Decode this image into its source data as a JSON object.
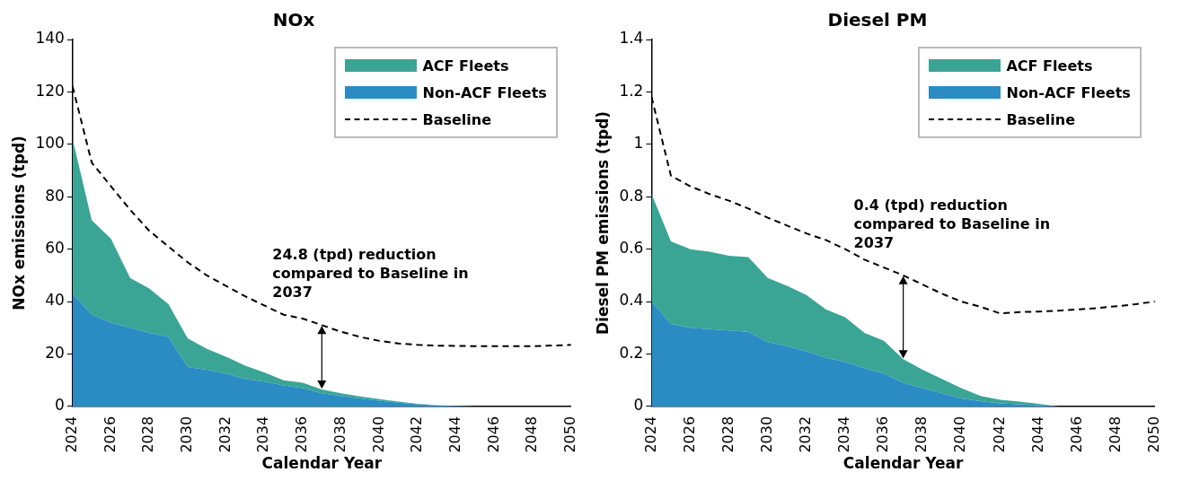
{
  "chart_data": [
    {
      "type": "area",
      "title": "NOx",
      "xlabel": "Calendar Year",
      "ylabel": "NOx emissions (tpd)",
      "stacked": true,
      "legend": "top right",
      "x": [
        2024,
        2025,
        2026,
        2027,
        2028,
        2029,
        2030,
        2031,
        2032,
        2033,
        2034,
        2035,
        2036,
        2037,
        2038,
        2039,
        2040,
        2041,
        2042,
        2043,
        2044,
        2045,
        2046,
        2047,
        2048,
        2049,
        2050
      ],
      "xlim": [
        2024,
        2050
      ],
      "xticks": [
        2024,
        2026,
        2028,
        2030,
        2032,
        2034,
        2036,
        2038,
        2040,
        2042,
        2044,
        2046,
        2048,
        2050
      ],
      "ylim": [
        0,
        140
      ],
      "yticks": [
        0,
        20,
        40,
        60,
        80,
        100,
        120,
        140
      ],
      "series": [
        {
          "name": "Non-ACF Fleets",
          "color": "#2b8cc4",
          "values": [
            43,
            35,
            32,
            30,
            28,
            26.5,
            15,
            14,
            12.5,
            10.5,
            9.5,
            8,
            7,
            5,
            4,
            3,
            2.2,
            1.4,
            0.8,
            0.4,
            0.1,
            0,
            0,
            0,
            0,
            0,
            0
          ]
        },
        {
          "name": "ACF Fleets",
          "color": "#3aa594",
          "values": [
            59,
            36,
            32,
            19,
            17,
            12.5,
            11,
            8,
            6.5,
            5,
            3.5,
            2,
            2,
            1.5,
            1,
            0.8,
            0.6,
            0.4,
            0.2,
            0.1,
            0.1,
            0,
            0,
            0,
            0,
            0,
            0
          ]
        },
        {
          "name": "Baseline",
          "type": "line",
          "line_style": "dashed",
          "color": "#000000",
          "values": [
            122,
            93,
            84,
            75,
            67,
            61,
            55,
            50,
            46,
            42,
            38.5,
            35,
            33.5,
            31,
            28.5,
            26.5,
            25,
            24,
            23.5,
            23.2,
            23.1,
            23,
            23,
            23,
            23,
            23.2,
            23.5
          ]
        }
      ],
      "annotations": [
        {
          "text": "24.8 (tpd) reduction compared to Baseline in 2037",
          "x": 2037,
          "y": 31
        }
      ]
    },
    {
      "type": "area",
      "title": "Diesel PM",
      "xlabel": "Calendar Year",
      "ylabel": "Diesel PM emissions (tpd)",
      "stacked": true,
      "legend": "top right",
      "x": [
        2024,
        2025,
        2026,
        2027,
        2028,
        2029,
        2030,
        2031,
        2032,
        2033,
        2034,
        2035,
        2036,
        2037,
        2038,
        2039,
        2040,
        2041,
        2042,
        2043,
        2044,
        2045,
        2046,
        2047,
        2048,
        2049,
        2050
      ],
      "xlim": [
        2024,
        2050
      ],
      "xticks": [
        2024,
        2026,
        2028,
        2030,
        2032,
        2034,
        2036,
        2038,
        2040,
        2042,
        2044,
        2046,
        2048,
        2050
      ],
      "ylim": [
        0,
        1.4
      ],
      "yticks": [
        0,
        0.2,
        0.4,
        0.6,
        0.8,
        1,
        1.2,
        1.4
      ],
      "series": [
        {
          "name": "Non-ACF Fleets",
          "color": "#2b8cc4",
          "values": [
            0.4,
            0.315,
            0.3,
            0.295,
            0.29,
            0.285,
            0.245,
            0.23,
            0.21,
            0.185,
            0.17,
            0.145,
            0.125,
            0.09,
            0.07,
            0.05,
            0.03,
            0.02,
            0.012,
            0.008,
            0.005,
            0,
            0,
            0,
            0,
            0,
            0
          ]
        },
        {
          "name": "ACF Fleets",
          "color": "#3aa594",
          "values": [
            0.41,
            0.315,
            0.3,
            0.295,
            0.285,
            0.285,
            0.245,
            0.23,
            0.215,
            0.185,
            0.17,
            0.135,
            0.125,
            0.09,
            0.07,
            0.055,
            0.04,
            0.02,
            0.013,
            0.01,
            0.005,
            0,
            0,
            0,
            0,
            0,
            0
          ]
        },
        {
          "name": "Baseline",
          "type": "line",
          "line_style": "dashed",
          "color": "#000000",
          "values": [
            1.18,
            0.88,
            0.84,
            0.81,
            0.785,
            0.755,
            0.72,
            0.69,
            0.66,
            0.635,
            0.6,
            0.56,
            0.53,
            0.5,
            0.465,
            0.43,
            0.4,
            0.38,
            0.355,
            0.36,
            0.362,
            0.365,
            0.37,
            0.375,
            0.382,
            0.39,
            0.4
          ]
        }
      ],
      "annotations": [
        {
          "text": "0.4 (tpd) reduction compared to Baseline in 2037",
          "x": 2037,
          "y": 0.5
        }
      ]
    }
  ]
}
